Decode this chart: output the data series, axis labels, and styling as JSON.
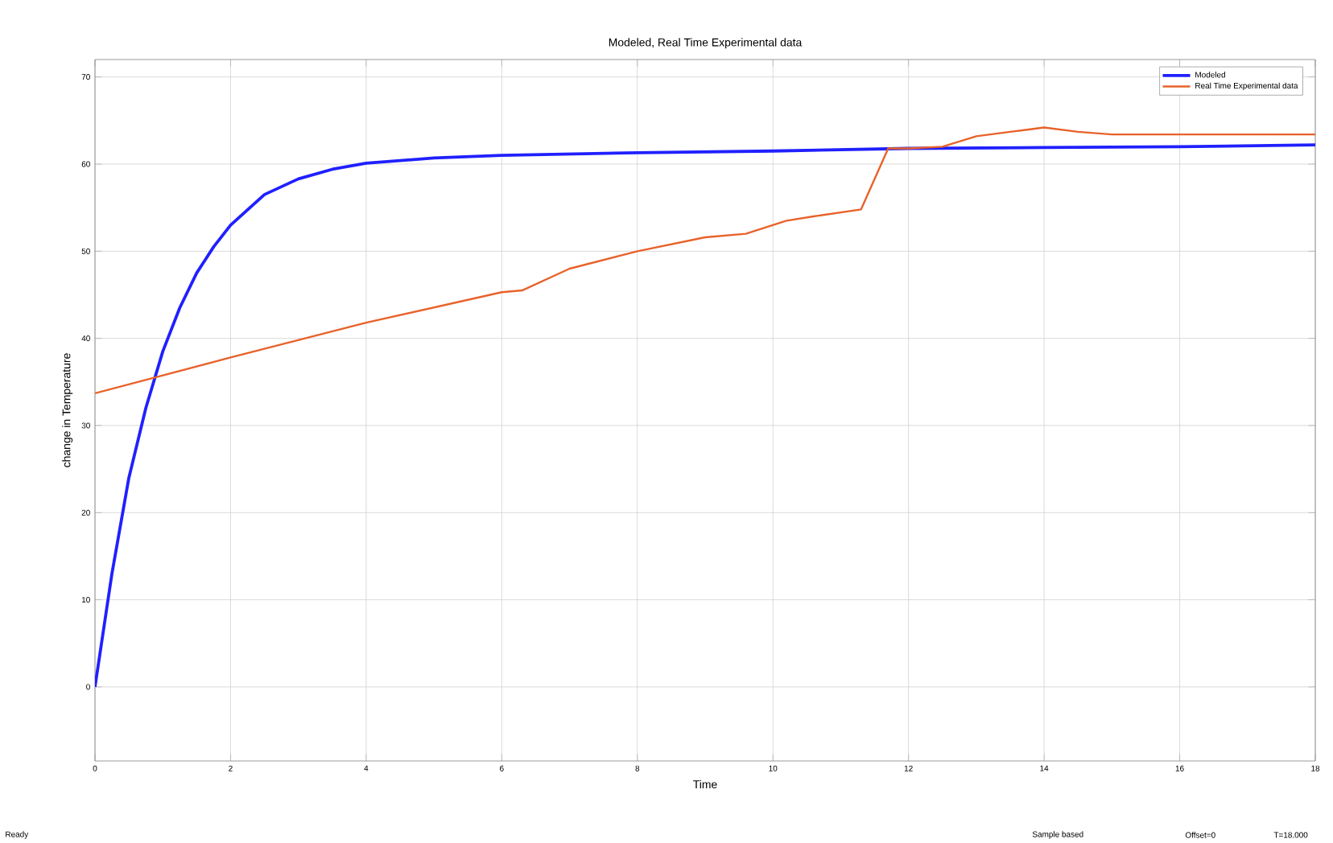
{
  "chart_data": {
    "type": "line",
    "title": "Modeled, Real Time Experimental data",
    "xlabel": "Time",
    "ylabel": "change in Temperature",
    "xlim": [
      0,
      18
    ],
    "ylim": [
      -8.5,
      72
    ],
    "xticks": [
      0,
      2,
      4,
      6,
      8,
      10,
      12,
      14,
      16,
      18
    ],
    "yticks": [
      0,
      10,
      20,
      30,
      40,
      50,
      60,
      70
    ],
    "grid": true,
    "legend": "top right",
    "line_style": "solid",
    "series": [
      {
        "name": "Modeled",
        "color": "#2020ff",
        "x": [
          0,
          0.25,
          0.5,
          0.75,
          1,
          1.25,
          1.5,
          1.75,
          2,
          2.5,
          3,
          3.5,
          4,
          5,
          6,
          8,
          10,
          12,
          14,
          16,
          18
        ],
        "values": [
          0,
          13,
          24,
          32,
          38.5,
          43.5,
          47.5,
          50.5,
          53,
          56.5,
          58.3,
          59.4,
          60.1,
          60.7,
          61,
          61.3,
          61.5,
          61.8,
          61.9,
          62,
          62.2
        ]
      },
      {
        "name": "Real Time Experimental data",
        "color": "#e8622a",
        "x": [
          0,
          2,
          4,
          6,
          6.3,
          7,
          8,
          9,
          9.6,
          10.2,
          10.6,
          11.3,
          11.7,
          12,
          12.5,
          13,
          13.5,
          14,
          14.5,
          15,
          18
        ],
        "values": [
          33.7,
          37.8,
          41.8,
          45.3,
          45.5,
          48,
          50,
          51.6,
          52,
          53.5,
          54,
          54.8,
          61.8,
          61.8,
          62,
          63.2,
          63.7,
          64.2,
          63.7,
          63.4,
          63.4
        ]
      }
    ],
    "annotations": [
      "Ready",
      "Sample based",
      "Offset=0",
      "T=18.000"
    ]
  }
}
